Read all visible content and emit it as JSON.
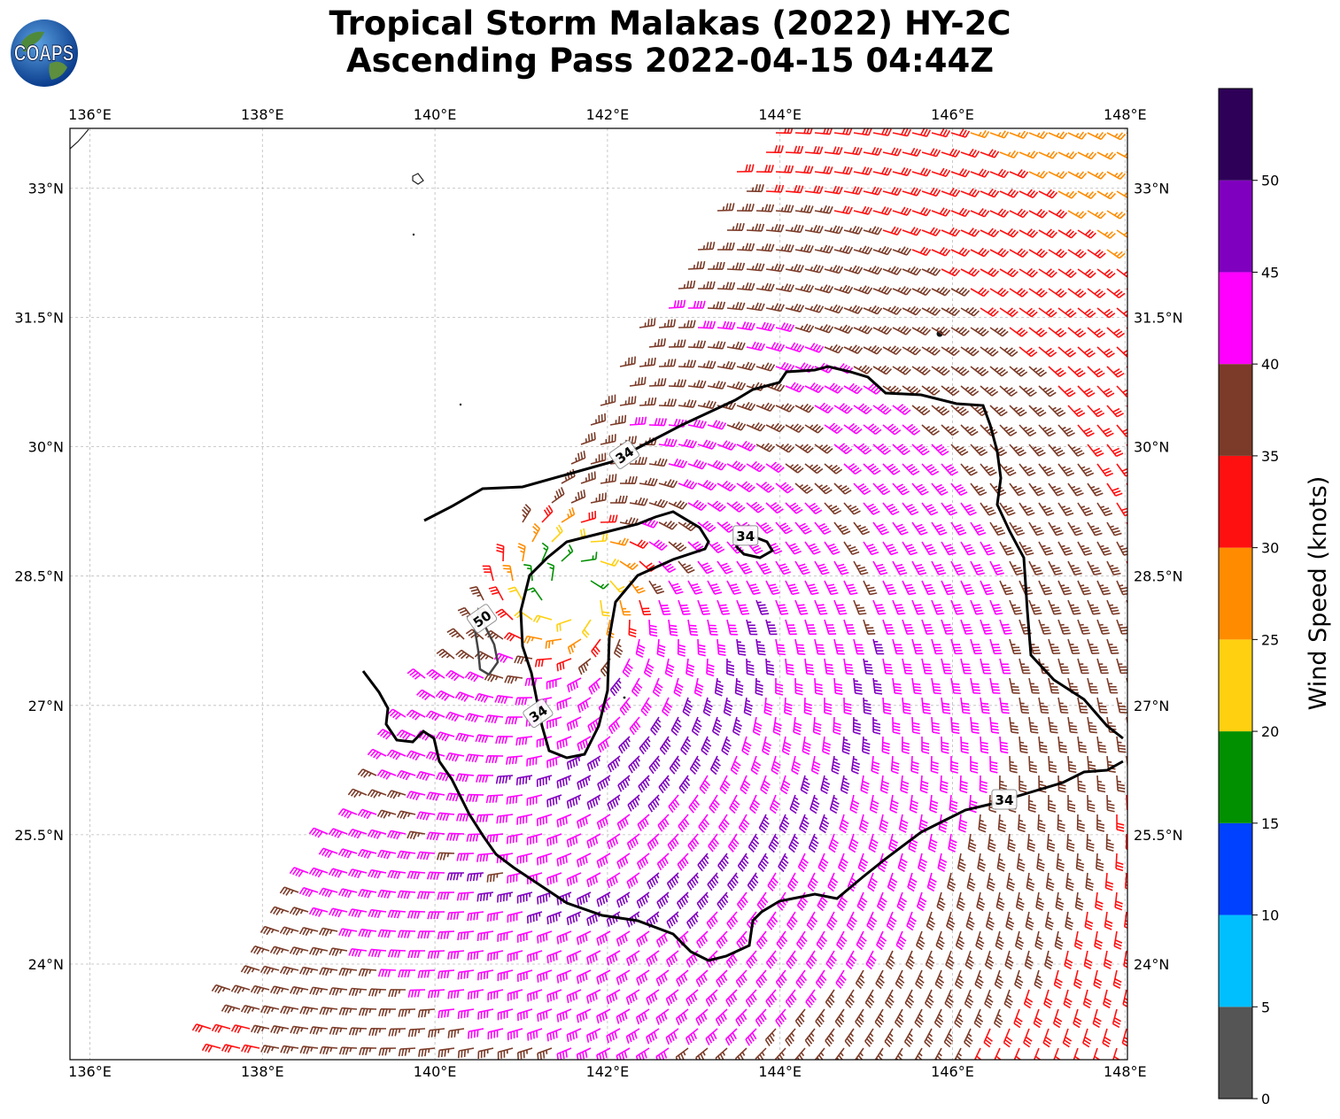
{
  "title": {
    "line1": "Tropical Storm Malakas (2022) HY-2C",
    "line2": "Ascending Pass 2022-04-15 04:44Z"
  },
  "logo": {
    "text": "COAPS",
    "icon": "globe-icon"
  },
  "map": {
    "lon_range": [
      135.77,
      148.0
    ],
    "lat_range": [
      23.1,
      33.68
    ],
    "lon_ticks": [
      {
        "value": 136,
        "label": "136°E"
      },
      {
        "value": 138,
        "label": "138°E"
      },
      {
        "value": 140,
        "label": "140°E"
      },
      {
        "value": 142,
        "label": "142°E"
      },
      {
        "value": 144,
        "label": "144°E"
      },
      {
        "value": 146,
        "label": "146°E"
      },
      {
        "value": 148,
        "label": "148°E"
      }
    ],
    "lat_ticks": [
      {
        "value": 24,
        "label": "24°N"
      },
      {
        "value": 25.5,
        "label": "25.5°N"
      },
      {
        "value": 27,
        "label": "27°N"
      },
      {
        "value": 28.5,
        "label": "28.5°N"
      },
      {
        "value": 30,
        "label": "30°N"
      },
      {
        "value": 31.5,
        "label": "31.5°N"
      },
      {
        "value": 33,
        "label": "33°N"
      }
    ],
    "grid": true,
    "storm_center": {
      "lon": 141.6,
      "lat": 28.3
    },
    "swath_west_edge_lon_at_lat23": 137.1,
    "contours": [
      {
        "level": 34,
        "label": "34",
        "label_positions": [
          {
            "lon": 142.2,
            "lat": 29.9
          },
          {
            "lon": 143.6,
            "lat": 28.96
          },
          {
            "lon": 141.2,
            "lat": 26.9
          },
          {
            "lon": 146.6,
            "lat": 25.9
          }
        ]
      },
      {
        "level": 50,
        "label": "50",
        "label_positions": [
          {
            "lon": 140.55,
            "lat": 28.0
          }
        ]
      }
    ]
  },
  "colorbar": {
    "label": "Wind Speed (knots)",
    "min": 0,
    "max": 55,
    "bins": [
      {
        "from": 0,
        "to": 5,
        "color": "#555555"
      },
      {
        "from": 5,
        "to": 10,
        "color": "#00bfff"
      },
      {
        "from": 10,
        "to": 15,
        "color": "#0040ff"
      },
      {
        "from": 15,
        "to": 20,
        "color": "#009000"
      },
      {
        "from": 20,
        "to": 25,
        "color": "#ffd010"
      },
      {
        "from": 25,
        "to": 30,
        "color": "#ff8c00"
      },
      {
        "from": 30,
        "to": 35,
        "color": "#ff1010"
      },
      {
        "from": 35,
        "to": 40,
        "color": "#7b3b28"
      },
      {
        "from": 40,
        "to": 45,
        "color": "#ff00ff"
      },
      {
        "from": 45,
        "to": 50,
        "color": "#8000c0"
      },
      {
        "from": 50,
        "to": 55,
        "color": "#2e0058"
      }
    ],
    "ticks": [
      {
        "value": 0,
        "label": "0"
      },
      {
        "value": 5,
        "label": "5"
      },
      {
        "value": 10,
        "label": "10"
      },
      {
        "value": 15,
        "label": "15"
      },
      {
        "value": 20,
        "label": "20"
      },
      {
        "value": 25,
        "label": "25"
      },
      {
        "value": 30,
        "label": "30"
      },
      {
        "value": 35,
        "label": "35"
      },
      {
        "value": 40,
        "label": "40"
      },
      {
        "value": 45,
        "label": "45"
      },
      {
        "value": 50,
        "label": "50"
      }
    ]
  }
}
